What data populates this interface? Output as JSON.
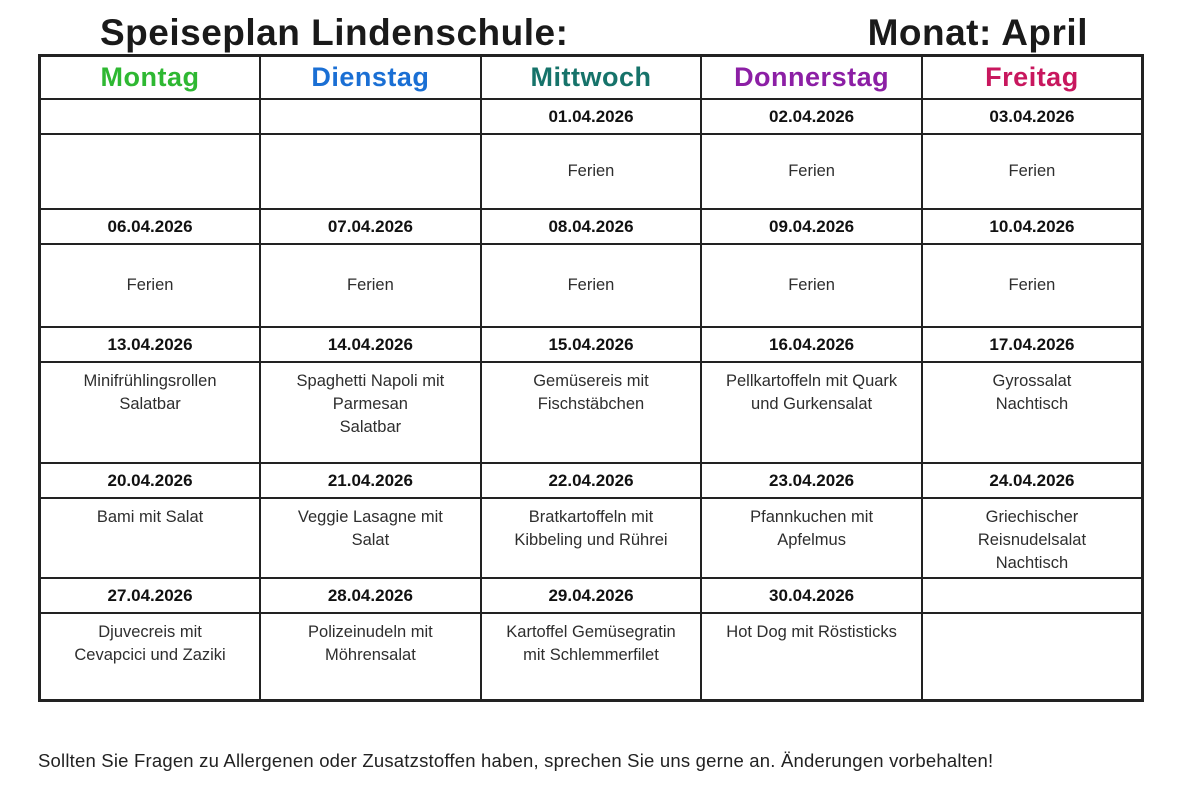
{
  "title": {
    "left": "Speiseplan Lindenschule:",
    "right": "Monat: April"
  },
  "columns": [
    {
      "label": "Montag",
      "color": "#2eb832"
    },
    {
      "label": "Dienstag",
      "color": "#1a6fd4"
    },
    {
      "label": "Mittwoch",
      "color": "#16736a"
    },
    {
      "label": "Donnerstag",
      "color": "#8c1fa5"
    },
    {
      "label": "Freitag",
      "color": "#c8175e"
    }
  ],
  "weeks": [
    {
      "dates": [
        "",
        "",
        "01.04.2026",
        "02.04.2026",
        "03.04.2026"
      ],
      "meals": [
        "",
        "",
        "Ferien",
        "Ferien",
        "Ferien"
      ]
    },
    {
      "dates": [
        "06.04.2026",
        "07.04.2026",
        "08.04.2026",
        "09.04.2026",
        "10.04.2026"
      ],
      "meals": [
        "Ferien",
        "Ferien",
        "Ferien",
        "Ferien",
        "Ferien"
      ]
    },
    {
      "dates": [
        "13.04.2026",
        "14.04.2026",
        "15.04.2026",
        "16.04.2026",
        "17.04.2026"
      ],
      "meals": [
        "Minifrühlingsrollen\nSalatbar",
        "Spaghetti Napoli mit\nParmesan\nSalatbar",
        "Gemüsereis mit\nFischstäbchen",
        "Pellkartoffeln mit Quark\nund Gurkensalat",
        "Gyrossalat\nNachtisch"
      ]
    },
    {
      "dates": [
        "20.04.2026",
        "21.04.2026",
        "22.04.2026",
        "23.04.2026",
        "24.04.2026"
      ],
      "meals": [
        "Bami mit Salat",
        "Veggie Lasagne mit\nSalat",
        "Bratkartoffeln mit\nKibbeling und Rührei",
        "Pfannkuchen mit\nApfelmus",
        "Griechischer\nReisnudelsalat\nNachtisch"
      ]
    },
    {
      "dates": [
        "27.04.2026",
        "28.04.2026",
        "29.04.2026",
        "30.04.2026",
        ""
      ],
      "meals": [
        "Djuvecreis mit\nCevapcici und Zaziki",
        "Polizeinudeln mit\nMöhrensalat",
        "Kartoffel Gemüsegratin\nmit Schlemmerfilet",
        "Hot Dog mit Röstisticks",
        ""
      ]
    }
  ],
  "footer": "Sollten Sie Fragen zu Allergenen oder Zusatzstoffen haben, sprechen Sie uns gerne an. Änderungen vorbehalten!"
}
